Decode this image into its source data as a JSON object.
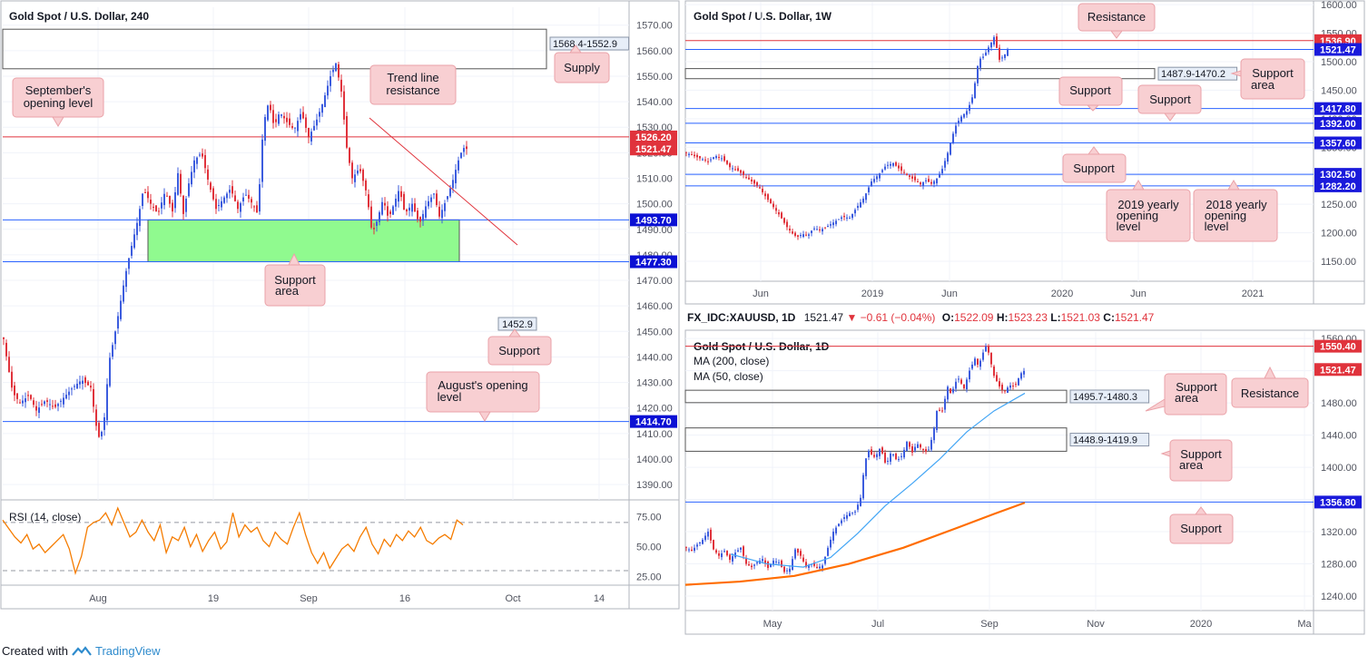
{
  "footer": {
    "created_with": "Created with",
    "brand": "TradingView"
  },
  "colors": {
    "up": "#3c5cde",
    "down": "#e0333c",
    "resistance": "#e0333c",
    "support": "#2962ff",
    "green_area": "#90fa8f",
    "rsi": "#f57c00",
    "ma50": "#42a5f5",
    "ma200": "#ff6d00",
    "callout_bg": "#f8cfd2"
  },
  "chart_data": [
    {
      "id": "h4",
      "type": "candlestick",
      "title": "Gold Spot / U.S. Dollar, 240",
      "x_ticks": [
        "Aug",
        "19",
        "Sep",
        "16",
        "Oct",
        "14"
      ],
      "y_ticks": [
        "1570.00",
        "1560.00",
        "1550.00",
        "1540.00",
        "1530.00",
        "1520.00",
        "1510.00",
        "1500.00",
        "1490.00",
        "1480.00",
        "1470.00",
        "1460.00",
        "1450.00",
        "1440.00",
        "1430.00",
        "1420.00",
        "1410.00",
        "1400.00",
        "1390.00"
      ],
      "ylim": [
        1384,
        1577
      ],
      "price_labels": [
        {
          "value": 1526.2,
          "text": "1526.20",
          "kind": "resistance"
        },
        {
          "value": 1521.47,
          "text": "1521.47",
          "kind": "current"
        },
        {
          "value": 1493.7,
          "text": "1493.70",
          "kind": "support"
        },
        {
          "value": 1477.3,
          "text": "1477.30",
          "kind": "support"
        },
        {
          "value": 1414.7,
          "text": "1414.70",
          "kind": "support"
        }
      ],
      "boxes": [
        {
          "label": "1568.4-1552.9",
          "top": 1568.4,
          "bottom": 1552.9,
          "fill": "none"
        },
        {
          "label": "",
          "top": 1493.7,
          "bottom": 1477.3,
          "fill": "green"
        }
      ],
      "level_tags": [
        {
          "text": "1452.9",
          "value": 1452.9
        }
      ],
      "callouts": [
        "Supply",
        "September's opening level",
        "Trend line resistance",
        "Support area",
        "Support",
        "August's opening level"
      ],
      "close_path": [
        [
          0,
          1447
        ],
        [
          4,
          1438
        ],
        [
          10,
          1426
        ],
        [
          18,
          1422
        ],
        [
          28,
          1425
        ],
        [
          36,
          1419
        ],
        [
          46,
          1423
        ],
        [
          56,
          1420
        ],
        [
          66,
          1424
        ],
        [
          76,
          1428
        ],
        [
          86,
          1431
        ],
        [
          96,
          1428
        ],
        [
          100,
          1418
        ],
        [
          104,
          1408
        ],
        [
          110,
          1412
        ],
        [
          116,
          1438
        ],
        [
          122,
          1448
        ],
        [
          128,
          1460
        ],
        [
          134,
          1472
        ],
        [
          140,
          1482
        ],
        [
          148,
          1494
        ],
        [
          154,
          1506
        ],
        [
          162,
          1500
        ],
        [
          170,
          1496
        ],
        [
          178,
          1505
        ],
        [
          186,
          1497
        ],
        [
          192,
          1512
        ],
        [
          198,
          1496
        ],
        [
          204,
          1508
        ],
        [
          210,
          1517
        ],
        [
          218,
          1520
        ],
        [
          226,
          1508
        ],
        [
          234,
          1498
        ],
        [
          242,
          1502
        ],
        [
          250,
          1506
        ],
        [
          258,
          1498
        ],
        [
          266,
          1504
        ],
        [
          274,
          1500
        ],
        [
          280,
          1496
        ],
        [
          286,
          1531
        ],
        [
          292,
          1540
        ],
        [
          298,
          1530
        ],
        [
          304,
          1536
        ],
        [
          312,
          1532
        ],
        [
          320,
          1529
        ],
        [
          328,
          1536
        ],
        [
          336,
          1526
        ],
        [
          344,
          1532
        ],
        [
          352,
          1540
        ],
        [
          360,
          1550
        ],
        [
          366,
          1555
        ],
        [
          372,
          1544
        ],
        [
          378,
          1522
        ],
        [
          384,
          1510
        ],
        [
          392,
          1514
        ],
        [
          400,
          1504
        ],
        [
          406,
          1488
        ],
        [
          412,
          1494
        ],
        [
          418,
          1502
        ],
        [
          424,
          1494
        ],
        [
          430,
          1500
        ],
        [
          436,
          1506
        ],
        [
          442,
          1496
        ],
        [
          450,
          1500
        ],
        [
          458,
          1492
        ],
        [
          466,
          1500
        ],
        [
          474,
          1504
        ],
        [
          480,
          1495
        ],
        [
          488,
          1502
        ],
        [
          494,
          1508
        ],
        [
          500,
          1516
        ],
        [
          506,
          1522
        ],
        [
          510,
          1521.5
        ]
      ]
    },
    {
      "id": "rsi",
      "type": "line",
      "title": "RSI (14, close)",
      "y_ticks": [
        "75.00",
        "50.00",
        "25.00"
      ],
      "ylim": [
        18,
        85
      ],
      "values": [
        72,
        65,
        58,
        53,
        60,
        48,
        52,
        45,
        50,
        55,
        60,
        48,
        28,
        42,
        66,
        70,
        72,
        78,
        68,
        82,
        70,
        58,
        62,
        72,
        62,
        55,
        68,
        45,
        58,
        55,
        66,
        50,
        60,
        46,
        55,
        62,
        48,
        54,
        78,
        58,
        68,
        62,
        66,
        55,
        50,
        62,
        56,
        52,
        66,
        78,
        60,
        45,
        36,
        45,
        32,
        40,
        48,
        52,
        46,
        58,
        66,
        52,
        44,
        56,
        50,
        60,
        55,
        63,
        58,
        66,
        55,
        52,
        57,
        60,
        56,
        72,
        68
      ]
    },
    {
      "id": "w1",
      "type": "candlestick",
      "title": "Gold Spot / U.S. Dollar, 1W",
      "x_ticks": [
        "Jun",
        "2019",
        "Jun",
        "2020",
        "Jun",
        "2021"
      ],
      "y_ticks": [
        "1600.00",
        "1550.00",
        "1500.00",
        "1450.00",
        "1400.00",
        "1350.00",
        "1300.00",
        "1250.00",
        "1200.00",
        "1150.00"
      ],
      "ylim": [
        1115,
        1605
      ],
      "price_labels": [
        {
          "value": 1536.9,
          "text": "1536.90",
          "kind": "resistance"
        },
        {
          "value": 1521.47,
          "text": "1521.47",
          "kind": "support"
        },
        {
          "value": 1417.8,
          "text": "1417.80",
          "kind": "support"
        },
        {
          "value": 1392.0,
          "text": "1392.00",
          "kind": "support"
        },
        {
          "value": 1357.6,
          "text": "1357.60",
          "kind": "support"
        },
        {
          "value": 1302.5,
          "text": "1302.50",
          "kind": "support"
        },
        {
          "value": 1282.2,
          "text": "1282.20",
          "kind": "support"
        }
      ],
      "boxes": [
        {
          "label": "1487.9-1470.2",
          "top": 1487.9,
          "bottom": 1470.2,
          "fill": "none"
        }
      ],
      "callouts": [
        "Resistance",
        "Support area",
        "Support",
        "Support",
        "Support",
        "2019 yearly opening level",
        "2018 yearly opening level"
      ],
      "close_path": [
        [
          0,
          1340
        ],
        [
          8,
          1335
        ],
        [
          16,
          1330
        ],
        [
          24,
          1325
        ],
        [
          32,
          1335
        ],
        [
          40,
          1330
        ],
        [
          48,
          1315
        ],
        [
          56,
          1310
        ],
        [
          64,
          1300
        ],
        [
          72,
          1290
        ],
        [
          80,
          1280
        ],
        [
          88,
          1262
        ],
        [
          96,
          1245
        ],
        [
          104,
          1228
        ],
        [
          110,
          1212
        ],
        [
          116,
          1200
        ],
        [
          122,
          1192
        ],
        [
          128,
          1198
        ],
        [
          134,
          1195
        ],
        [
          140,
          1208
        ],
        [
          148,
          1205
        ],
        [
          156,
          1212
        ],
        [
          164,
          1220
        ],
        [
          172,
          1228
        ],
        [
          180,
          1226
        ],
        [
          188,
          1245
        ],
        [
          196,
          1262
        ],
        [
          204,
          1290
        ],
        [
          212,
          1302
        ],
        [
          220,
          1318
        ],
        [
          228,
          1322
        ],
        [
          236,
          1310
        ],
        [
          244,
          1300
        ],
        [
          252,
          1292
        ],
        [
          258,
          1285
        ],
        [
          264,
          1292
        ],
        [
          270,
          1286
        ],
        [
          276,
          1295
        ],
        [
          282,
          1312
        ],
        [
          288,
          1340
        ],
        [
          296,
          1385
        ],
        [
          302,
          1402
        ],
        [
          310,
          1415
        ],
        [
          316,
          1442
        ],
        [
          322,
          1503
        ],
        [
          328,
          1510
        ],
        [
          334,
          1528
        ],
        [
          340,
          1546
        ],
        [
          344,
          1502
        ],
        [
          350,
          1510
        ],
        [
          354,
          1521.5
        ]
      ]
    },
    {
      "id": "d1",
      "type": "candlestick",
      "title": "Gold Spot / U.S. Dollar, 1D",
      "header": {
        "symbol": "FX_IDC:XAUUSD, 1D",
        "last": "1521.47",
        "change": "−0.61 (−0.04%)",
        "open_label": "O:",
        "open": "1522.09",
        "high_label": "H:",
        "high": "1523.23",
        "low_label": "L:",
        "low": "1521.03",
        "close_label": "C:",
        "close": "1521.47"
      },
      "series": [
        {
          "name": "MA (200, close)"
        },
        {
          "name": "MA (50, close)"
        }
      ],
      "x_ticks": [
        "May",
        "Jul",
        "Sep",
        "Nov",
        "2020",
        "Ma"
      ],
      "y_ticks": [
        "1560.00",
        "1520.00",
        "1480.00",
        "1440.00",
        "1400.00",
        "1360.00",
        "1320.00",
        "1280.00",
        "1240.00"
      ],
      "ylim": [
        1222,
        1568
      ],
      "price_labels": [
        {
          "value": 1550.4,
          "text": "1550.40",
          "kind": "resistance"
        },
        {
          "value": 1521.47,
          "text": "1521.47",
          "kind": "current"
        },
        {
          "value": 1356.8,
          "text": "1356.80",
          "kind": "support"
        }
      ],
      "boxes": [
        {
          "label": "1495.7-1480.3",
          "top": 1495.7,
          "bottom": 1480.3,
          "fill": "none"
        },
        {
          "label": "1448.9-1419.9",
          "top": 1448.9,
          "bottom": 1419.9,
          "fill": "none"
        }
      ],
      "callouts": [
        "Support area",
        "Resistance",
        "Support area",
        "Support"
      ],
      "close_path": [
        [
          0,
          1300
        ],
        [
          6,
          1296
        ],
        [
          12,
          1304
        ],
        [
          18,
          1310
        ],
        [
          24,
          1320
        ],
        [
          30,
          1298
        ],
        [
          36,
          1290
        ],
        [
          42,
          1296
        ],
        [
          48,
          1285
        ],
        [
          54,
          1294
        ],
        [
          60,
          1300
        ],
        [
          66,
          1280
        ],
        [
          72,
          1276
        ],
        [
          78,
          1282
        ],
        [
          84,
          1286
        ],
        [
          90,
          1275
        ],
        [
          96,
          1284
        ],
        [
          102,
          1282
        ],
        [
          108,
          1270
        ],
        [
          114,
          1274
        ],
        [
          120,
          1298
        ],
        [
          126,
          1290
        ],
        [
          132,
          1276
        ],
        [
          138,
          1280
        ],
        [
          144,
          1275
        ],
        [
          150,
          1278
        ],
        [
          156,
          1300
        ],
        [
          162,
          1320
        ],
        [
          168,
          1330
        ],
        [
          174,
          1338
        ],
        [
          180,
          1343
        ],
        [
          186,
          1345
        ],
        [
          192,
          1362
        ],
        [
          196,
          1400
        ],
        [
          200,
          1422
        ],
        [
          204,
          1416
        ],
        [
          208,
          1412
        ],
        [
          214,
          1425
        ],
        [
          220,
          1402
        ],
        [
          226,
          1420
        ],
        [
          232,
          1408
        ],
        [
          238,
          1415
        ],
        [
          244,
          1435
        ],
        [
          248,
          1416
        ],
        [
          254,
          1430
        ],
        [
          260,
          1422
        ],
        [
          266,
          1418
        ],
        [
          272,
          1442
        ],
        [
          276,
          1470
        ],
        [
          282,
          1470
        ],
        [
          288,
          1500
        ],
        [
          292,
          1490
        ],
        [
          296,
          1505
        ],
        [
          300,
          1510
        ],
        [
          306,
          1498
        ],
        [
          312,
          1520
        ],
        [
          318,
          1535
        ],
        [
          322,
          1525
        ],
        [
          326,
          1540
        ],
        [
          330,
          1550
        ],
        [
          334,
          1540
        ],
        [
          338,
          1516
        ],
        [
          344,
          1502
        ],
        [
          350,
          1493
        ],
        [
          356,
          1502
        ],
        [
          362,
          1500
        ],
        [
          368,
          1516
        ],
        [
          374,
          1521.5
        ]
      ],
      "ma50_path": [
        [
          50,
          1292
        ],
        [
          90,
          1280
        ],
        [
          130,
          1276
        ],
        [
          160,
          1288
        ],
        [
          190,
          1318
        ],
        [
          220,
          1352
        ],
        [
          250,
          1380
        ],
        [
          280,
          1410
        ],
        [
          310,
          1444
        ],
        [
          340,
          1470
        ],
        [
          374,
          1492
        ]
      ],
      "ma200_path": [
        [
          0,
          1254
        ],
        [
          60,
          1258
        ],
        [
          120,
          1265
        ],
        [
          180,
          1280
        ],
        [
          240,
          1300
        ],
        [
          300,
          1325
        ],
        [
          340,
          1342
        ],
        [
          374,
          1356
        ]
      ]
    }
  ]
}
